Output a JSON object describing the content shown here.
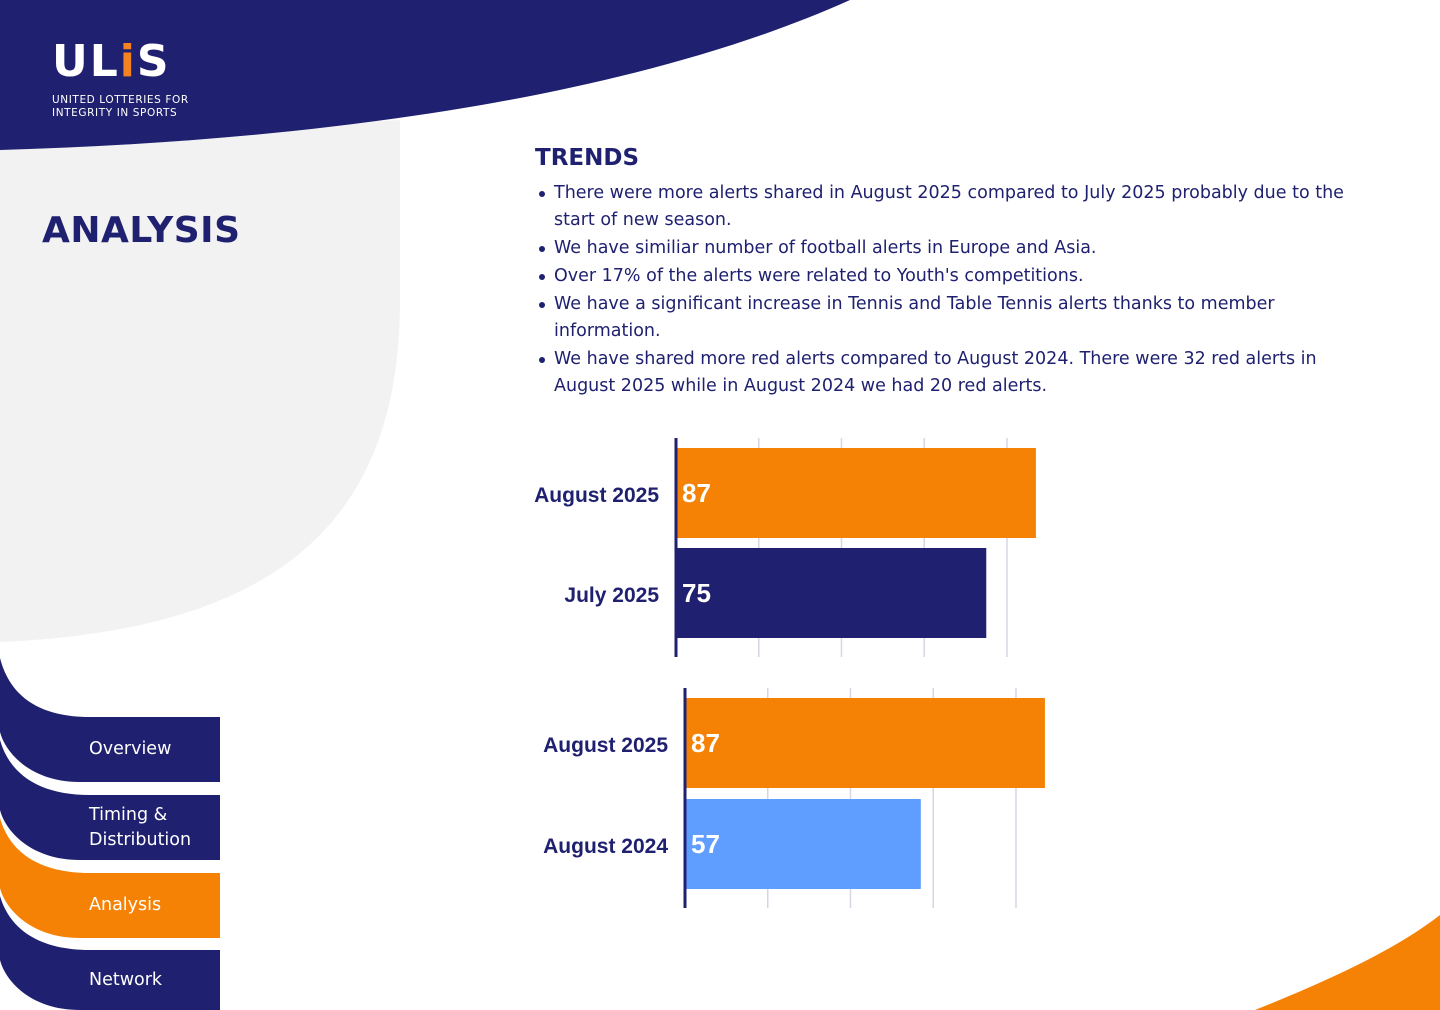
{
  "brand": {
    "logo_text": "ULiS",
    "tagline_line1": "UNITED LOTTERIES FOR",
    "tagline_line2": "INTEGRITY IN SPORTS"
  },
  "page_title": "ANALYSIS",
  "trends": {
    "title": "TRENDS",
    "items": [
      "There were more alerts shared in August 2025 compared to July 2025 probably due to the start of new season.",
      "We have similiar number of football alerts in Europe and Asia.",
      "Over 17% of the alerts were related to Youth's competitions.",
      "We have a significant increase in Tennis and Table Tennis alerts thanks to member information.",
      "We have shared more red alerts compared to August 2024. There were 32 red alerts in August 2025 while in August 2024 we had 20 red alerts."
    ]
  },
  "chart_data": [
    {
      "type": "bar",
      "orientation": "horizontal",
      "categories": [
        "August 2025",
        "July 2025"
      ],
      "values": [
        87,
        75
      ],
      "colors": [
        "#f58205",
        "#1f2170"
      ],
      "xlim": [
        0,
        100
      ],
      "grid": true,
      "title": "",
      "xlabel": "",
      "ylabel": ""
    },
    {
      "type": "bar",
      "orientation": "horizontal",
      "categories": [
        "August 2025",
        "August 2024"
      ],
      "values": [
        87,
        57
      ],
      "colors": [
        "#f58205",
        "#5f9dff"
      ],
      "xlim": [
        0,
        100
      ],
      "grid": true,
      "title": "",
      "xlabel": "",
      "ylabel": ""
    }
  ],
  "nav": {
    "items": [
      {
        "label_lines": [
          "Overview"
        ],
        "active": false
      },
      {
        "label_lines": [
          "Timing &",
          "Distribution"
        ],
        "active": false
      },
      {
        "label_lines": [
          "Analysis"
        ],
        "active": true
      },
      {
        "label_lines": [
          "Network"
        ],
        "active": false
      }
    ]
  },
  "colors": {
    "navy": "#1f2170",
    "orange": "#f58205",
    "light_gray": "#f2f2f2",
    "light_blue": "#5f9dff"
  }
}
